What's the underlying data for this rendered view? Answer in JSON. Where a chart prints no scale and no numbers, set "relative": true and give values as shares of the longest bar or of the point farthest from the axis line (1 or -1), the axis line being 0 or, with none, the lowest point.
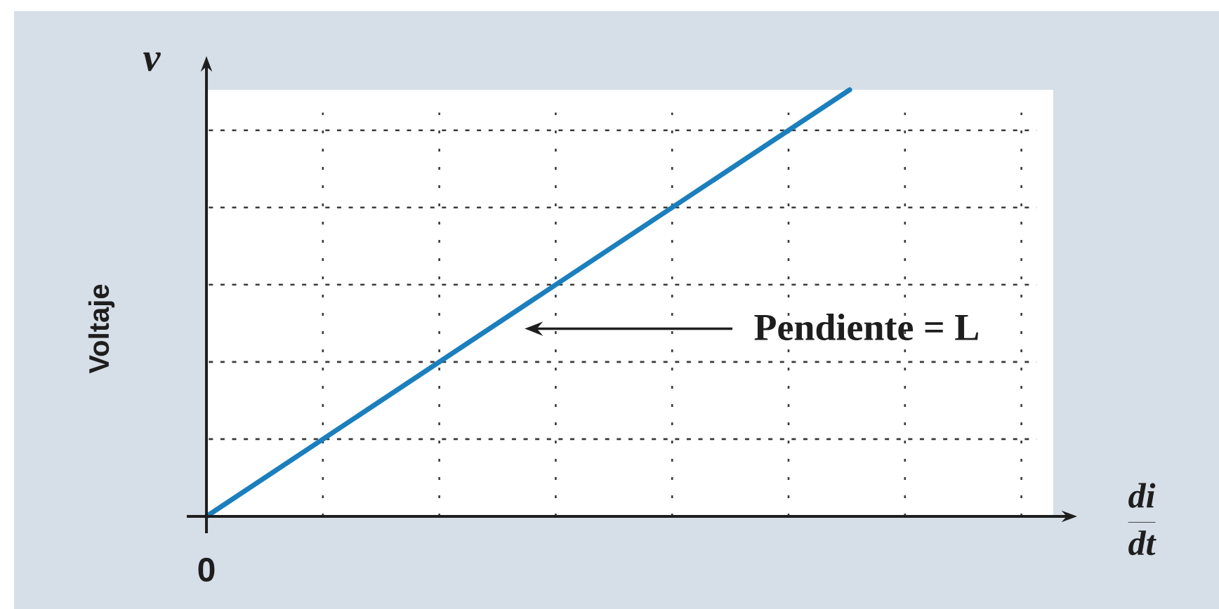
{
  "chart_data": {
    "type": "line",
    "relative": true,
    "ylabel": "Voltaje",
    "categories": [
      null,
      null
    ],
    "values": [
      0,
      1
    ],
    "color": "#1b7fbd",
    "grid": true,
    "annotations": [
      "v",
      "0",
      "Pendiente = L",
      "\\frac{di}{dt}"
    ]
  }
}
